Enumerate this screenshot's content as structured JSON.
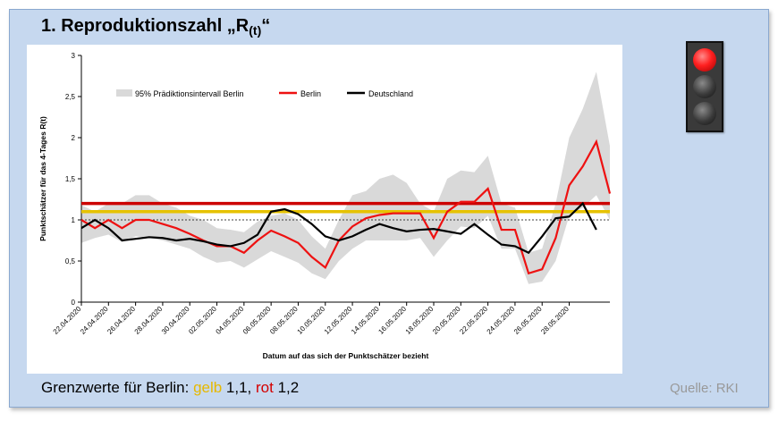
{
  "title": {
    "main": "1. Reproduktionszahl „R",
    "sub": "(t)",
    "close": "“"
  },
  "footer": {
    "prefix": "Grenzwerte für Berlin: ",
    "yellow_word": "gelb",
    "yellow_value": " 1,1, ",
    "red_word": "rot",
    "red_value": " 1,2"
  },
  "source": "Quelle: RKI",
  "traffic_light": {
    "active": "red"
  },
  "chart_data": {
    "type": "line",
    "xlabel": "Datum auf das sich der Punktschätzer bezieht",
    "ylabel": "Punktschätzer für das 4-Tages R(t)",
    "ylim": [
      0,
      3
    ],
    "yticks": [
      0,
      0.5,
      1,
      1.5,
      2,
      2.5,
      3
    ],
    "ytick_labels": [
      "0",
      "0,5",
      "1",
      "1,5",
      "2",
      "2,5",
      "3"
    ],
    "xtick_labels": [
      "22.04.2020",
      "24.04.2020",
      "26.04.2020",
      "28.04.2020",
      "30.04.2020",
      "02.05.2020",
      "04.05.2020",
      "06.05.2020",
      "08.05.2020",
      "10.05.2020",
      "12.05.2020",
      "14.05.2020",
      "16.05.2020",
      "18.05.2020",
      "20.05.2020",
      "22.05.2020",
      "24.05.2020",
      "26.05.2020",
      "28.05.2020"
    ],
    "x_start": "22.04.2020",
    "legend": [
      "95% Prädiktionsintervall Berlin",
      "Berlin",
      "Deutschland"
    ],
    "legend_position": "top",
    "thresholds": [
      {
        "value": 1.2,
        "color": "#cc0000"
      },
      {
        "value": 1.1,
        "color": "#e6c200"
      },
      {
        "value": 1.0,
        "color": "#000000",
        "style": "dotted"
      }
    ],
    "series": [
      {
        "name": "Berlin",
        "color": "#ee1111",
        "values": [
          1.0,
          0.9,
          1.0,
          0.9,
          1.0,
          1.0,
          0.95,
          0.9,
          0.83,
          0.75,
          0.68,
          0.68,
          0.6,
          0.75,
          0.87,
          0.8,
          0.72,
          0.55,
          0.42,
          0.75,
          0.92,
          1.02,
          1.06,
          1.08,
          1.08,
          1.08,
          0.78,
          1.1,
          1.22,
          1.22,
          1.38,
          0.88,
          0.88,
          0.35,
          0.4,
          0.78,
          1.42,
          1.65,
          1.95,
          1.32
        ]
      },
      {
        "name": "Deutschland",
        "color": "#000000",
        "values": [
          0.9,
          1.0,
          0.9,
          0.75,
          0.77,
          0.79,
          0.78,
          0.75,
          0.77,
          0.74,
          0.7,
          0.68,
          0.72,
          0.82,
          1.1,
          1.13,
          1.07,
          0.95,
          0.8,
          0.75,
          0.8,
          0.88,
          0.95,
          0.9,
          0.86,
          0.88,
          0.89,
          0.86,
          0.83,
          0.95,
          0.82,
          0.7,
          0.68,
          0.6,
          0.8,
          1.02,
          1.04,
          1.2,
          0.88
        ]
      },
      {
        "name": "95% Prädiktionsintervall Berlin",
        "color": "#d9d9d9",
        "upper": [
          1.18,
          1.1,
          1.2,
          1.2,
          1.3,
          1.3,
          1.2,
          1.15,
          1.05,
          1.0,
          0.9,
          0.88,
          0.85,
          0.98,
          1.05,
          1.08,
          1.0,
          0.8,
          0.65,
          1.0,
          1.3,
          1.35,
          1.5,
          1.55,
          1.45,
          1.2,
          1.1,
          1.5,
          1.6,
          1.58,
          1.78,
          1.2,
          1.15,
          0.6,
          0.65,
          1.2,
          2.0,
          2.35,
          2.8,
          1.9
        ],
        "lower": [
          0.72,
          0.78,
          0.82,
          0.73,
          0.8,
          0.78,
          0.75,
          0.7,
          0.65,
          0.55,
          0.48,
          0.5,
          0.42,
          0.52,
          0.62,
          0.55,
          0.48,
          0.35,
          0.28,
          0.5,
          0.65,
          0.75,
          0.75,
          0.75,
          0.75,
          0.78,
          0.55,
          0.75,
          0.92,
          0.9,
          1.05,
          0.65,
          0.65,
          0.22,
          0.25,
          0.5,
          1.05,
          1.15,
          1.3,
          1.0
        ]
      }
    ]
  }
}
